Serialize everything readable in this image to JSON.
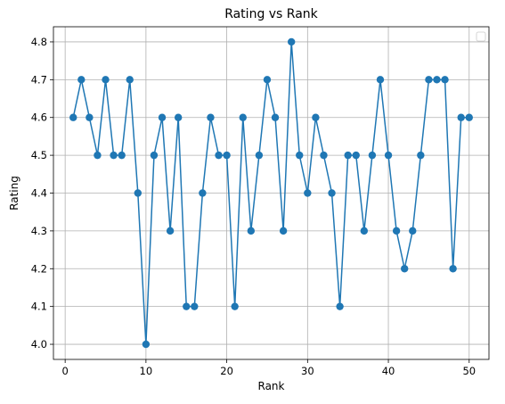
{
  "chart_data": {
    "type": "line",
    "title": "Rating vs Rank",
    "xlabel": "Rank",
    "ylabel": "Rating",
    "xlim": [
      -1.45,
      52.45
    ],
    "ylim": [
      3.96,
      4.84
    ],
    "xticks": [
      0,
      10,
      20,
      30,
      40,
      50
    ],
    "xtick_labels": [
      "0",
      "10",
      "20",
      "30",
      "40",
      "50"
    ],
    "yticks": [
      4.0,
      4.1,
      4.2,
      4.3,
      4.4,
      4.5,
      4.6,
      4.7,
      4.8
    ],
    "ytick_labels": [
      "4.0",
      "4.1",
      "4.2",
      "4.3",
      "4.4",
      "4.5",
      "4.6",
      "4.7",
      "4.8"
    ],
    "grid": true,
    "legend": "upper-right (empty)",
    "series_color": "#1f77b4",
    "series": [
      {
        "x": [
          1,
          2,
          3,
          4,
          5,
          6,
          7,
          8,
          9,
          10,
          11,
          12,
          13,
          14,
          15,
          16,
          17,
          18,
          19,
          20,
          21,
          22,
          23,
          24,
          25,
          26,
          27,
          28,
          29,
          30,
          31,
          32,
          33,
          34,
          35,
          36,
          37,
          38,
          39,
          40,
          41,
          42,
          43,
          44,
          45,
          46,
          47,
          48,
          49,
          50
        ],
        "values": [
          4.6,
          4.7,
          4.6,
          4.5,
          4.7,
          4.5,
          4.5,
          4.7,
          4.4,
          4.0,
          4.5,
          4.6,
          4.3,
          4.6,
          4.1,
          4.1,
          4.4,
          4.6,
          4.5,
          4.5,
          4.1,
          4.6,
          4.3,
          4.5,
          4.7,
          4.6,
          4.3,
          4.8,
          4.5,
          4.4,
          4.6,
          4.5,
          4.4,
          4.1,
          4.5,
          4.5,
          4.3,
          4.5,
          4.7,
          4.5,
          4.3,
          4.2,
          4.3,
          4.5,
          4.7,
          4.7,
          4.7,
          4.2,
          4.6,
          4.6
        ]
      }
    ]
  }
}
